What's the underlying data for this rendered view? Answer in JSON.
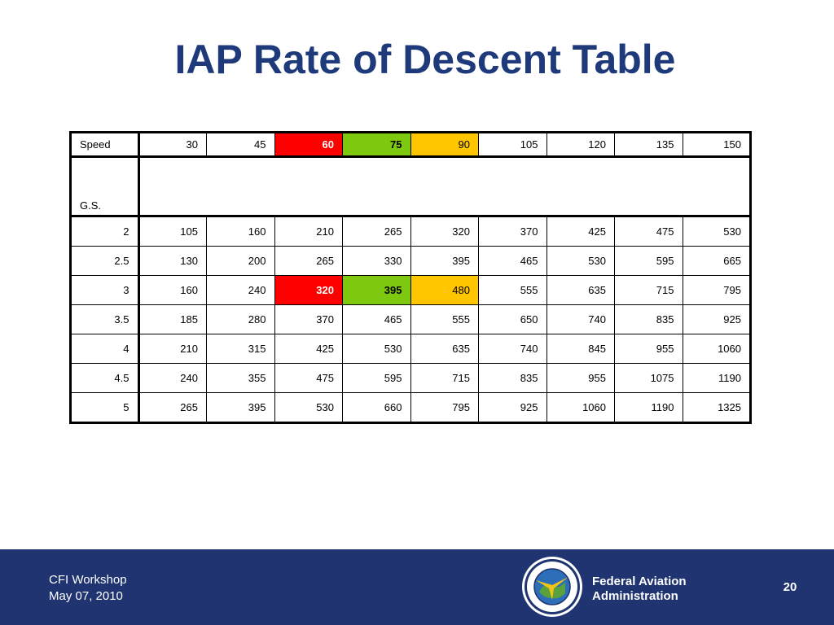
{
  "title": "IAP Rate of Descent Table",
  "table": {
    "speed_label": "Speed",
    "gs_label": "G.S.",
    "speeds": [
      "30",
      "45",
      "60",
      "75",
      "90",
      "105",
      "120",
      "135",
      "150"
    ],
    "highlights": {
      "red": "#ff0000",
      "green": "#7ec80f",
      "yellow": "#ffc600"
    },
    "rows": [
      {
        "gs": "2",
        "values": [
          "105",
          "160",
          "210",
          "265",
          "320",
          "370",
          "425",
          "475",
          "530"
        ]
      },
      {
        "gs": "2.5",
        "values": [
          "130",
          "200",
          "265",
          "330",
          "395",
          "465",
          "530",
          "595",
          "665"
        ]
      },
      {
        "gs": "3",
        "values": [
          "160",
          "240",
          "320",
          "395",
          "480",
          "555",
          "635",
          "715",
          "795"
        ]
      },
      {
        "gs": "3.5",
        "values": [
          "185",
          "280",
          "370",
          "465",
          "555",
          "650",
          "740",
          "835",
          "925"
        ]
      },
      {
        "gs": "4",
        "values": [
          "210",
          "315",
          "425",
          "530",
          "635",
          "740",
          "845",
          "955",
          "1060"
        ]
      },
      {
        "gs": "4.5",
        "values": [
          "240",
          "355",
          "475",
          "595",
          "715",
          "835",
          "955",
          "1075",
          "1190"
        ]
      },
      {
        "gs": "5",
        "values": [
          "265",
          "395",
          "530",
          "660",
          "795",
          "925",
          "1060",
          "1190",
          "1325"
        ]
      }
    ]
  },
  "footer": {
    "event": "CFI Workshop",
    "date": "May 07, 2010",
    "agency_line1": "Federal Aviation",
    "agency_line2": "Administration",
    "logo_icon": "faa-seal-icon",
    "page_number": "20",
    "background": "#1f3470"
  }
}
